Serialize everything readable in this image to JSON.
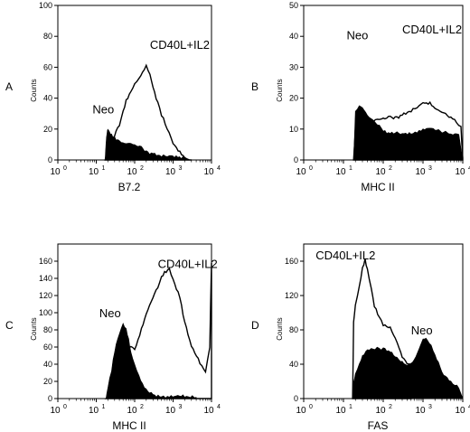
{
  "chart_data": [
    {
      "type": "area",
      "panel_label": "A",
      "xlabel": "B7.2",
      "ylabel": "Counts",
      "xscale": "log",
      "xlim": [
        1,
        10000
      ],
      "ylim": [
        0,
        100
      ],
      "y_ticks": [
        0,
        20,
        40,
        60,
        80,
        100
      ],
      "x_tick_bases": [
        "10",
        "10",
        "10",
        "10",
        "10"
      ],
      "x_tick_exps": [
        "0",
        "1",
        "2",
        "3",
        "4"
      ],
      "annotations": [
        {
          "text": "CD40L+IL2",
          "x": 250,
          "y": 72
        },
        {
          "text": "Neo",
          "x": 8,
          "y": 30
        }
      ],
      "series": [
        {
          "name": "Neo",
          "style": "filled",
          "x": [
            17,
            18,
            19,
            20,
            22,
            25,
            30,
            40,
            50,
            60,
            80,
            100,
            150,
            200,
            300,
            500,
            800,
            1200,
            2000,
            3000
          ],
          "y": [
            0,
            12,
            18,
            20,
            17,
            15,
            14,
            13,
            12,
            11,
            10,
            9,
            8,
            6,
            5,
            3,
            2,
            1,
            0.5,
            0
          ]
        },
        {
          "name": "CD40L+IL2",
          "style": "outline",
          "x": [
            17,
            20,
            25,
            30,
            40,
            50,
            60,
            80,
            100,
            130,
            160,
            200,
            250,
            300,
            400,
            500,
            700,
            1000,
            1500,
            2000,
            3000
          ],
          "y": [
            0,
            8,
            12,
            16,
            22,
            30,
            38,
            45,
            50,
            53,
            56,
            60,
            55,
            48,
            38,
            30,
            20,
            10,
            4,
            2,
            0
          ]
        }
      ]
    },
    {
      "type": "area",
      "panel_label": "B",
      "xlabel": "MHC II",
      "ylabel": "Counts",
      "xscale": "log",
      "xlim": [
        1,
        10000
      ],
      "ylim": [
        0,
        50
      ],
      "y_ticks": [
        0,
        10,
        20,
        30,
        40,
        50
      ],
      "x_tick_bases": [
        "10",
        "10",
        "10",
        "10",
        "10"
      ],
      "x_tick_exps": [
        "0",
        "1",
        "2",
        "3",
        "4"
      ],
      "annotations": [
        {
          "text": "Neo",
          "x": 12,
          "y": 39
        },
        {
          "text": "CD40L+IL2",
          "x": 300,
          "y": 41
        }
      ],
      "series": [
        {
          "name": "Neo",
          "style": "filled",
          "x": [
            18,
            20,
            25,
            30,
            40,
            60,
            80,
            100,
            150,
            200,
            300,
            500,
            800,
            1000,
            1500,
            2000,
            3000,
            5000,
            8000,
            10000
          ],
          "y": [
            0,
            16,
            18,
            17,
            14,
            12,
            11,
            10,
            9,
            9,
            8,
            8,
            9,
            10,
            11,
            10,
            9,
            8,
            8,
            0
          ]
        },
        {
          "name": "CD40L+IL2",
          "style": "outline",
          "x": [
            18,
            20,
            30,
            50,
            80,
            100,
            150,
            200,
            300,
            500,
            800,
            1000,
            1500,
            2000,
            3000,
            5000,
            7000,
            9000,
            10000
          ],
          "y": [
            0,
            10,
            12,
            12,
            13,
            13,
            14,
            14,
            15,
            16,
            17,
            18,
            18,
            17,
            16,
            14,
            12,
            10,
            0
          ]
        }
      ]
    },
    {
      "type": "area",
      "panel_label": "C",
      "xlabel": "MHC II",
      "ylabel": "Counts",
      "xscale": "log",
      "xlim": [
        1,
        10000
      ],
      "ylim": [
        0,
        180
      ],
      "y_ticks": [
        0,
        20,
        40,
        60,
        80,
        100,
        120,
        140,
        160
      ],
      "x_tick_bases": [
        "10",
        "10",
        "10",
        "10",
        "10"
      ],
      "x_tick_exps": [
        "0",
        "1",
        "2",
        "3",
        "4"
      ],
      "annotations": [
        {
          "text": "CD40L+IL2",
          "x": 400,
          "y": 152
        },
        {
          "text": "Neo",
          "x": 12,
          "y": 95
        }
      ],
      "series": [
        {
          "name": "Neo",
          "style": "filled",
          "x": [
            18,
            20,
            25,
            30,
            40,
            50,
            60,
            70,
            80,
            100,
            130,
            160,
            200,
            300,
            500,
            800,
            1200,
            2000,
            4000
          ],
          "y": [
            0,
            15,
            35,
            55,
            75,
            85,
            80,
            70,
            55,
            40,
            25,
            15,
            10,
            6,
            4,
            3,
            2,
            1,
            0
          ]
        },
        {
          "name": "CD40L+IL2",
          "style": "outline",
          "x": [
            18,
            25,
            40,
            60,
            80,
            100,
            150,
            200,
            300,
            400,
            500,
            600,
            800,
            1000,
            1500,
            2000,
            3000,
            5000,
            7000,
            9000,
            10000
          ],
          "y": [
            0,
            10,
            30,
            55,
            60,
            55,
            80,
            100,
            120,
            130,
            140,
            145,
            150,
            140,
            120,
            90,
            60,
            40,
            30,
            60,
            160
          ]
        }
      ]
    },
    {
      "type": "area",
      "panel_label": "D",
      "xlabel": "FAS",
      "ylabel": "Counts",
      "xscale": "log",
      "xlim": [
        1,
        10000
      ],
      "ylim": [
        0,
        180
      ],
      "y_ticks": [
        0,
        40,
        80,
        120,
        160
      ],
      "x_tick_bases": [
        "10",
        "10",
        "10",
        "10",
        "10"
      ],
      "x_tick_exps": [
        "0",
        "1",
        "2",
        "3",
        "4"
      ],
      "annotations": [
        {
          "text": "CD40L+IL2",
          "x": 2,
          "y": 162
        },
        {
          "text": "Neo",
          "x": 500,
          "y": 75
        }
      ],
      "series": [
        {
          "name": "Neo",
          "style": "filled",
          "x": [
            17,
            18,
            20,
            25,
            30,
            40,
            50,
            70,
            100,
            150,
            200,
            300,
            400,
            600,
            800,
            1000,
            1300,
            2000,
            3000,
            5000,
            8000,
            10000
          ],
          "y": [
            0,
            20,
            30,
            40,
            48,
            55,
            58,
            60,
            60,
            55,
            48,
            40,
            38,
            45,
            60,
            70,
            68,
            50,
            30,
            20,
            15,
            0
          ]
        },
        {
          "name": "CD40L+IL2",
          "style": "outline",
          "x": [
            17,
            18,
            20,
            25,
            30,
            35,
            40,
            50,
            60,
            80,
            100,
            150,
            200,
            250,
            300,
            400,
            500
          ],
          "y": [
            0,
            90,
            110,
            130,
            150,
            160,
            150,
            130,
            110,
            95,
            85,
            80,
            70,
            60,
            50,
            42,
            38
          ]
        }
      ]
    }
  ]
}
